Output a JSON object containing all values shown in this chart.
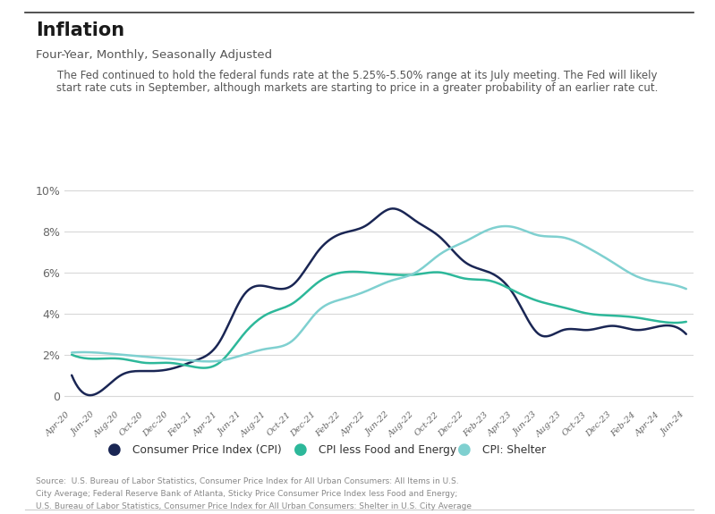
{
  "title": "Inflation",
  "subtitle": "Four-Year, Monthly, Seasonally Adjusted",
  "annotation_line1": "The Fed continued to hold the federal funds rate at the 5.25%-5.50% range at its July meeting. The Fed will likely",
  "annotation_line2": "start rate cuts in September, although markets are starting to price in a greater probability of an earlier rate cut.",
  "source_line1": "Source:  U.S. Bureau of Labor Statistics, Consumer Price Index for All Urban Consumers: All Items in U.S.",
  "source_line2": "City Average; Federal Reserve Bank of Atlanta, Sticky Price Consumer Price Index less Food and Energy;",
  "source_line3": "U.S. Bureau of Labor Statistics, Consumer Price Index for All Urban Consumers: Shelter in U.S. City Average",
  "background_color": "#ffffff",
  "plot_bg_color": "#ffffff",
  "ylim": [
    -0.5,
    10.5
  ],
  "yticks": [
    0,
    2,
    4,
    6,
    8,
    10
  ],
  "ytick_labels": [
    "0",
    "2%",
    "4%",
    "6%",
    "8%",
    "10%"
  ],
  "cpi_color": "#1a2654",
  "cfi_color": "#2db89a",
  "shelter_color": "#7fd0d0",
  "legend_labels": [
    "Consumer Price Index (CPI)",
    "CPI less Food and Energy",
    "CPI: Shelter"
  ],
  "x_labels": [
    "Apr-20",
    "Jun-20",
    "Aug-20",
    "Oct-20",
    "Dec-20",
    "Feb-21",
    "Apr-21",
    "Jun-21",
    "Aug-21",
    "Oct-21",
    "Dec-21",
    "Feb-22",
    "Apr-22",
    "Jun-22",
    "Aug-22",
    "Oct-22",
    "Dec-22",
    "Feb-23",
    "Apr-23",
    "Jun-23",
    "Aug-23",
    "Oct-23",
    "Dec-23",
    "Feb-24",
    "Apr-24",
    "Jun-24"
  ],
  "cpi": [
    1.0,
    0.1,
    1.0,
    1.2,
    1.3,
    1.7,
    2.6,
    4.9,
    5.3,
    5.4,
    7.0,
    7.9,
    8.3,
    9.1,
    8.5,
    7.7,
    6.5,
    6.0,
    4.9,
    3.0,
    3.2,
    3.2,
    3.4,
    3.2,
    3.4,
    3.0
  ],
  "cfi": [
    2.0,
    1.8,
    1.8,
    1.6,
    1.6,
    1.4,
    1.6,
    3.0,
    4.0,
    4.5,
    5.5,
    6.0,
    6.0,
    5.9,
    5.9,
    6.0,
    5.7,
    5.6,
    5.1,
    4.6,
    4.3,
    4.0,
    3.9,
    3.8,
    3.6,
    3.6
  ],
  "shelter": [
    2.1,
    2.1,
    2.0,
    1.9,
    1.8,
    1.7,
    1.7,
    2.0,
    2.3,
    2.7,
    4.1,
    4.7,
    5.1,
    5.6,
    6.0,
    6.9,
    7.5,
    8.1,
    8.2,
    7.8,
    7.7,
    7.2,
    6.5,
    5.8,
    5.5,
    5.2
  ],
  "top_border_color": "#333333",
  "bottom_border_color": "#cccccc",
  "grid_color": "#d8d8d8",
  "tick_label_color": "#666666",
  "title_color": "#1a1a1a",
  "subtitle_color": "#555555",
  "annotation_color": "#555555",
  "source_color": "#888888"
}
